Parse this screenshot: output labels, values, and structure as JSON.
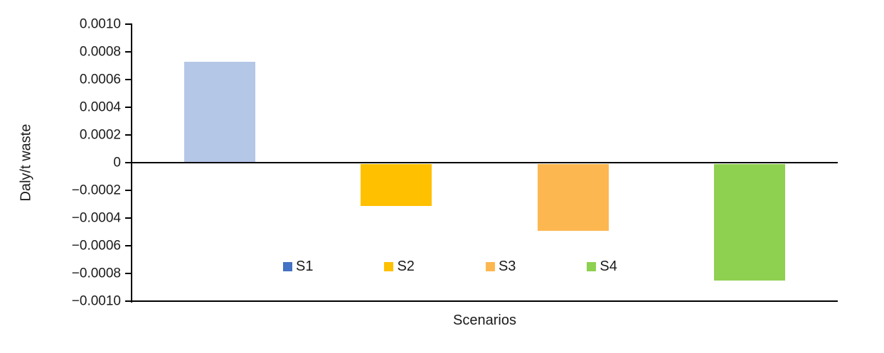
{
  "chart_data": {
    "type": "bar",
    "categories": [
      "S1",
      "S2",
      "S3",
      "S4"
    ],
    "values": [
      0.00073,
      -0.0003,
      -0.00048,
      -0.00084
    ],
    "series": [
      {
        "name": "S1",
        "value": 0.00073,
        "bar_color": "#B4C7E7",
        "legend_color": "#4472C4"
      },
      {
        "name": "S2",
        "value": -0.0003,
        "bar_color": "#FFC000",
        "legend_color": "#FFC000"
      },
      {
        "name": "S3",
        "value": -0.00048,
        "bar_color": "#FDB750",
        "legend_color": "#FDB750"
      },
      {
        "name": "S4",
        "value": -0.00084,
        "bar_color": "#8ED04F",
        "legend_color": "#8ED04F"
      }
    ],
    "title": "",
    "xlabel": "Scenarios",
    "ylabel": "Daly/t waste",
    "ylim": [
      -0.001,
      0.001
    ],
    "ytick_step": 0.0002,
    "ytick_labels_top_to_bottom": [
      "0.0010",
      "0.0008",
      "0.0006",
      "0.0004",
      "0.0002",
      "0",
      "−0.0002",
      "−0.0004",
      "−0.0006",
      "−0.0008",
      "−0.0010"
    ],
    "grid": "none",
    "legend_position": "inside-bottom-center",
    "axis_color": "#000000"
  }
}
